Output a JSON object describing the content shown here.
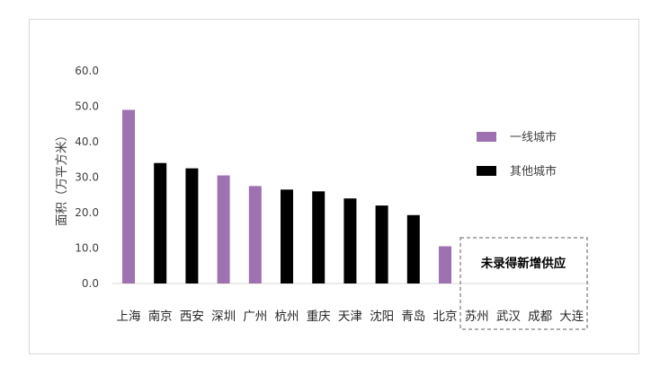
{
  "chart_data": {
    "type": "bar",
    "ylabel": "面积（万平方米）",
    "ylim": [
      0,
      60
    ],
    "yticks": [
      "0.0",
      "10.0",
      "20.0",
      "30.0",
      "40.0",
      "50.0",
      "60.0"
    ],
    "grid": false,
    "legend_position": "right",
    "categories": [
      "上海",
      "南京",
      "西安",
      "深圳",
      "广州",
      "杭州",
      "重庆",
      "天津",
      "沈阳",
      "青岛",
      "北京",
      "苏州",
      "武汉",
      "成都",
      "大连"
    ],
    "values": [
      49.0,
      34.0,
      32.5,
      30.5,
      27.5,
      26.5,
      26.0,
      24.0,
      22.0,
      19.3,
      10.5,
      null,
      null,
      null,
      null
    ],
    "groups": [
      "一线城市",
      "其他城市",
      "其他城市",
      "一线城市",
      "一线城市",
      "其他城市",
      "其他城市",
      "其他城市",
      "其他城市",
      "其他城市",
      "一线城市",
      null,
      null,
      null,
      null
    ],
    "series": [
      {
        "name": "一线城市",
        "color": "#9e72b0"
      },
      {
        "name": "其他城市",
        "color": "#000000"
      }
    ],
    "annotation": "未录得新增供应"
  }
}
